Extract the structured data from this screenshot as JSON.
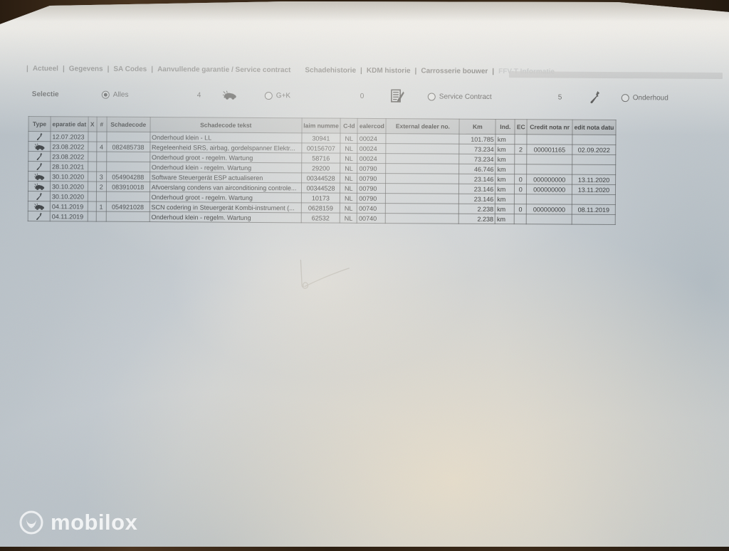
{
  "tabs": [
    {
      "label": "Actueel",
      "disabled": false,
      "sep_before": true
    },
    {
      "label": "Gegevens",
      "disabled": false,
      "sep_before": true
    },
    {
      "label": "SA Codes",
      "disabled": false,
      "sep_before": true
    },
    {
      "label": "Aanvullende garantie / Service contract",
      "disabled": false,
      "sep_before": true
    },
    {
      "label": "Schadehistorie",
      "disabled": false,
      "sep_before": false
    },
    {
      "label": "KDM historie",
      "disabled": false,
      "sep_before": true
    },
    {
      "label": "Carrosserie bouwer",
      "disabled": false,
      "sep_before": true
    },
    {
      "label": "FFV-T Informatie",
      "disabled": true,
      "sep_before": true
    }
  ],
  "selection": {
    "label": "Selectie",
    "groups": [
      {
        "count": "",
        "icon": "",
        "radio_label": "Alles",
        "selected": true
      },
      {
        "count": "4",
        "icon": "crash-car-icon",
        "radio_label": "G+K",
        "selected": false
      },
      {
        "count": "0",
        "icon": "claim-document-icon",
        "radio_label": "Service Contract",
        "selected": false
      },
      {
        "count": "5",
        "icon": "wrench-icon",
        "radio_label": "Onderhoud",
        "selected": false
      }
    ]
  },
  "table": {
    "columns": [
      {
        "key": "type",
        "label": "Type"
      },
      {
        "key": "datum",
        "label": "eparatie dat"
      },
      {
        "key": "x",
        "label": "X"
      },
      {
        "key": "nr",
        "label": "#"
      },
      {
        "key": "code",
        "label": "Schadecode"
      },
      {
        "key": "tekst",
        "label": "Schadecode tekst"
      },
      {
        "key": "claim",
        "label": "laim numme"
      },
      {
        "key": "cid",
        "label": "C-Id"
      },
      {
        "key": "dealer",
        "label": "ealercod"
      },
      {
        "key": "external",
        "label": "External dealer no."
      },
      {
        "key": "km",
        "label": "Km"
      },
      {
        "key": "ind",
        "label": "Ind."
      },
      {
        "key": "ec",
        "label": "EC"
      },
      {
        "key": "credit_nr",
        "label": "Credit nota nr"
      },
      {
        "key": "credit_datum",
        "label": "edit nota datu"
      }
    ],
    "rows": [
      {
        "type": "wrench",
        "datum": "12.07.2023",
        "x": "",
        "nr": "",
        "code": "",
        "tekst": "Onderhoud klein - LL",
        "claim": "30941",
        "cid": "NL",
        "dealer": "00024",
        "external": "",
        "km": "101.785",
        "ind": "km",
        "ec": "",
        "credit_nr": "",
        "credit_datum": ""
      },
      {
        "type": "car",
        "datum": "23.08.2022",
        "x": "",
        "nr": "4",
        "code": "082485738",
        "tekst": "Regeleenheid SRS, airbag, gordelspanner Elektr...",
        "claim": "00156707",
        "cid": "NL",
        "dealer": "00024",
        "external": "",
        "km": "73.234",
        "ind": "km",
        "ec": "2",
        "credit_nr": "000001165",
        "credit_datum": "02.09.2022"
      },
      {
        "type": "wrench",
        "datum": "23.08.2022",
        "x": "",
        "nr": "",
        "code": "",
        "tekst": "Onderhoud groot - regelm. Wartung",
        "claim": "58716",
        "cid": "NL",
        "dealer": "00024",
        "external": "",
        "km": "73.234",
        "ind": "km",
        "ec": "",
        "credit_nr": "",
        "credit_datum": ""
      },
      {
        "type": "wrench",
        "datum": "28.10.2021",
        "x": "",
        "nr": "",
        "code": "",
        "tekst": "Onderhoud klein - regelm. Wartung",
        "claim": "29200",
        "cid": "NL",
        "dealer": "00790",
        "external": "",
        "km": "46.746",
        "ind": "km",
        "ec": "",
        "credit_nr": "",
        "credit_datum": ""
      },
      {
        "type": "car",
        "datum": "30.10.2020",
        "x": "",
        "nr": "3",
        "code": "054904288",
        "tekst": "Software Steuergerät ESP actualiseren",
        "claim": "00344528",
        "cid": "NL",
        "dealer": "00790",
        "external": "",
        "km": "23.146",
        "ind": "km",
        "ec": "0",
        "credit_nr": "000000000",
        "credit_datum": "13.11.2020"
      },
      {
        "type": "car",
        "datum": "30.10.2020",
        "x": "",
        "nr": "2",
        "code": "083910018",
        "tekst": "Afvoerslang condens van airconditioning controle...",
        "claim": "00344528",
        "cid": "NL",
        "dealer": "00790",
        "external": "",
        "km": "23.146",
        "ind": "km",
        "ec": "0",
        "credit_nr": "000000000",
        "credit_datum": "13.11.2020"
      },
      {
        "type": "wrench",
        "datum": "30.10.2020",
        "x": "",
        "nr": "",
        "code": "",
        "tekst": "Onderhoud groot - regelm. Wartung",
        "claim": "10173",
        "cid": "NL",
        "dealer": "00790",
        "external": "",
        "km": "23.146",
        "ind": "km",
        "ec": "",
        "credit_nr": "",
        "credit_datum": ""
      },
      {
        "type": "car",
        "datum": "04.11.2019",
        "x": "",
        "nr": "1",
        "code": "054921028",
        "tekst": "SCN codering in Steuergerät Kombi-instrument (...",
        "claim": "0628159",
        "cid": "NL",
        "dealer": "00740",
        "external": "",
        "km": "2.238",
        "ind": "km",
        "ec": "0",
        "credit_nr": "000000000",
        "credit_datum": "08.11.2019"
      },
      {
        "type": "wrench",
        "datum": "04.11.2019",
        "x": "",
        "nr": "",
        "code": "",
        "tekst": "Onderhoud klein - regelm. Wartung",
        "claim": "62532",
        "cid": "NL",
        "dealer": "00740",
        "external": "",
        "km": "2.238",
        "ind": "km",
        "ec": "",
        "credit_nr": "",
        "credit_datum": ""
      }
    ]
  },
  "watermark": {
    "brand": "mobilox"
  }
}
